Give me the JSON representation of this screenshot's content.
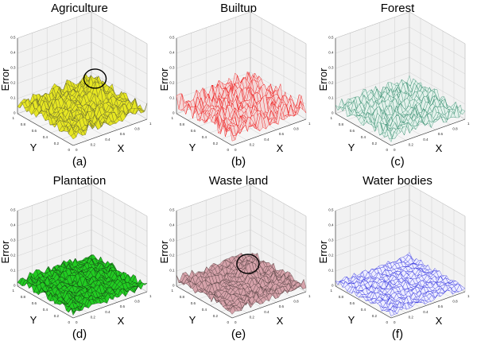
{
  "chart_data": [
    {
      "type": "surface",
      "title": "Agriculture",
      "label": "(a)",
      "xlabel": "X",
      "ylabel": "Y",
      "zlabel": "Error",
      "xlim": [
        0,
        1
      ],
      "ylim": [
        0,
        1
      ],
      "zlim": [
        0,
        0.5
      ],
      "xticks": [
        "0",
        "0.2",
        "0.4",
        "0.6",
        "0.8",
        "1"
      ],
      "yticks": [
        "0",
        "0.2",
        "0.4",
        "0.6",
        "0.8",
        "1"
      ],
      "zticks": [
        "0",
        "0.1",
        "0.2",
        "0.3",
        "0.4",
        "0.5"
      ],
      "mean_error": 0.07,
      "noise_amp": 0.07,
      "peak": {
        "x": 0.74,
        "y": 0.59,
        "z": 0.2,
        "circled": true
      },
      "fill": "#e6e622",
      "stroke": "#5a5a30"
    },
    {
      "type": "surface",
      "title": "Builtup",
      "label": "(b)",
      "xlabel": "X",
      "ylabel": "Y",
      "zlabel": "Error",
      "xlim": [
        0,
        1
      ],
      "ylim": [
        0,
        1
      ],
      "zlim": [
        0,
        0.5
      ],
      "xticks": [
        "0",
        "0.2",
        "0.4",
        "0.6",
        "0.8",
        "1"
      ],
      "yticks": [
        "0",
        "0.2",
        "0.4",
        "0.6",
        "0.8",
        "1"
      ],
      "zticks": [
        "0",
        "0.1",
        "0.2",
        "0.3",
        "0.4",
        "0.5"
      ],
      "mean_error": 0.05,
      "noise_amp": 0.11,
      "peak": null,
      "fill": "#f4d8d8",
      "stroke": "#ee1111"
    },
    {
      "type": "surface",
      "title": "Forest",
      "label": "(c)",
      "xlabel": "X",
      "ylabel": "Y",
      "zlabel": "Error",
      "xlim": [
        0,
        1
      ],
      "ylim": [
        0,
        1
      ],
      "zlim": [
        0,
        0.5
      ],
      "xticks": [
        "0",
        "0.2",
        "0.4",
        "0.6",
        "0.8",
        "1"
      ],
      "yticks": [
        "0",
        "0.2",
        "0.4",
        "0.6",
        "0.8",
        "1"
      ],
      "zticks": [
        "0",
        "0.1",
        "0.2",
        "0.3",
        "0.4",
        "0.5"
      ],
      "mean_error": 0.04,
      "noise_amp": 0.08,
      "peak": null,
      "fill": "#e4f2ec",
      "stroke": "#2f8a6a"
    },
    {
      "type": "surface",
      "title": "Plantation",
      "label": "(d)",
      "xlabel": "X",
      "ylabel": "Y",
      "zlabel": "Error",
      "xlim": [
        0,
        1
      ],
      "ylim": [
        0,
        1
      ],
      "zlim": [
        0,
        0.5
      ],
      "xticks": [
        "0",
        "0.2",
        "0.4",
        "0.6",
        "0.8",
        "1"
      ],
      "yticks": [
        "0",
        "0.2",
        "0.4",
        "0.6",
        "0.8",
        "1"
      ],
      "zticks": [
        "0",
        "0.1",
        "0.2",
        "0.3",
        "0.4",
        "0.5"
      ],
      "mean_error": 0.03,
      "noise_amp": 0.05,
      "peak": null,
      "fill": "#22cc22",
      "stroke": "#113311"
    },
    {
      "type": "surface",
      "title": "Waste land",
      "label": "(e)",
      "xlabel": "X",
      "ylabel": "Y",
      "zlabel": "Error",
      "xlim": [
        0,
        1
      ],
      "ylim": [
        0,
        1
      ],
      "zlim": [
        0,
        0.5
      ],
      "xticks": [
        "0",
        "0.2",
        "0.4",
        "0.6",
        "0.8",
        "1"
      ],
      "yticks": [
        "0",
        "0.2",
        "0.4",
        "0.6",
        "0.8",
        "1"
      ],
      "zticks": [
        "0",
        "0.1",
        "0.2",
        "0.3",
        "0.4",
        "0.5"
      ],
      "mean_error": 0.04,
      "noise_amp": 0.05,
      "peak": {
        "x": 0.68,
        "y": 0.62,
        "z": 0.12,
        "circled": true
      },
      "fill": "#d6a2aa",
      "stroke": "#4a3a3a"
    },
    {
      "type": "surface",
      "title": "Water bodies",
      "label": "(f)",
      "xlabel": "X",
      "ylabel": "Y",
      "zlabel": "Error",
      "xlim": [
        0,
        1
      ],
      "ylim": [
        0,
        1
      ],
      "zlim": [
        0,
        0.5
      ],
      "xticks": [
        "0",
        "0.2",
        "0.4",
        "0.6",
        "0.8",
        "1"
      ],
      "yticks": [
        "0",
        "0.2",
        "0.4",
        "0.6",
        "0.8",
        "1"
      ],
      "zticks": [
        "0",
        "0.1",
        "0.2",
        "0.3",
        "0.4",
        "0.5"
      ],
      "mean_error": 0.02,
      "noise_amp": 0.04,
      "peak": null,
      "fill": "#eeeeff",
      "stroke": "#2424dd"
    }
  ]
}
